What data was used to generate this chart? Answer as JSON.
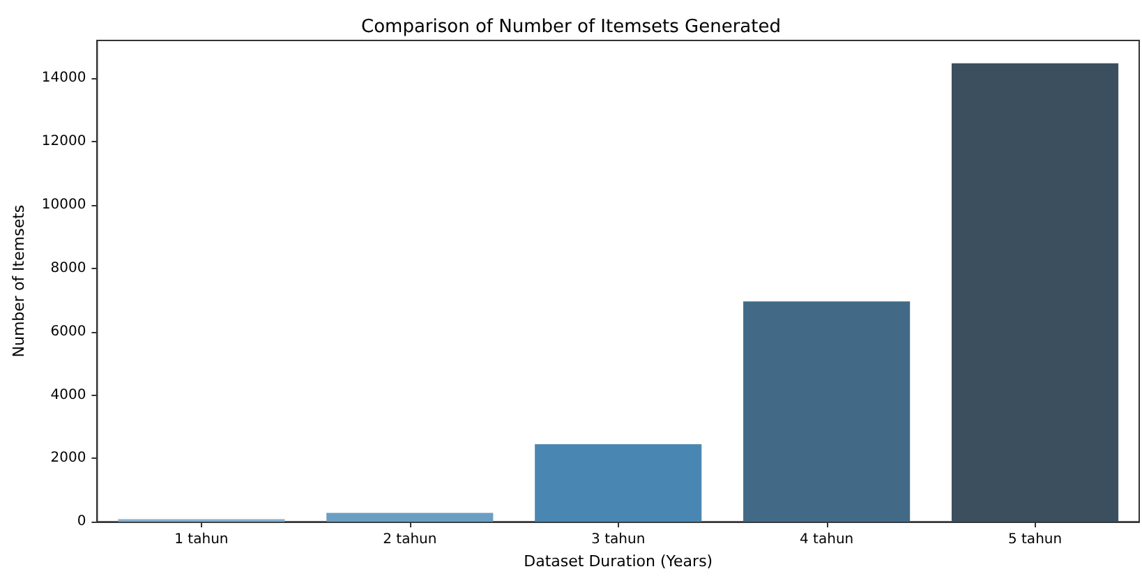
{
  "chart_data": {
    "type": "bar",
    "title": "Comparison of Number of Itemsets Generated",
    "xlabel": "Dataset Duration (Years)",
    "ylabel": "Number of Itemsets",
    "categories": [
      "1 tahun",
      "2 tahun",
      "3 tahun",
      "4 tahun",
      "5 tahun"
    ],
    "values": [
      80,
      280,
      2450,
      6960,
      14480
    ],
    "colors": [
      "#8ab0cd",
      "#6a9ec2",
      "#4a86b2",
      "#426a87",
      "#3c4f5e"
    ],
    "ylim": [
      0,
      15200
    ],
    "yticks": [
      0,
      2000,
      4000,
      6000,
      8000,
      10000,
      12000,
      14000
    ],
    "grid": false
  }
}
